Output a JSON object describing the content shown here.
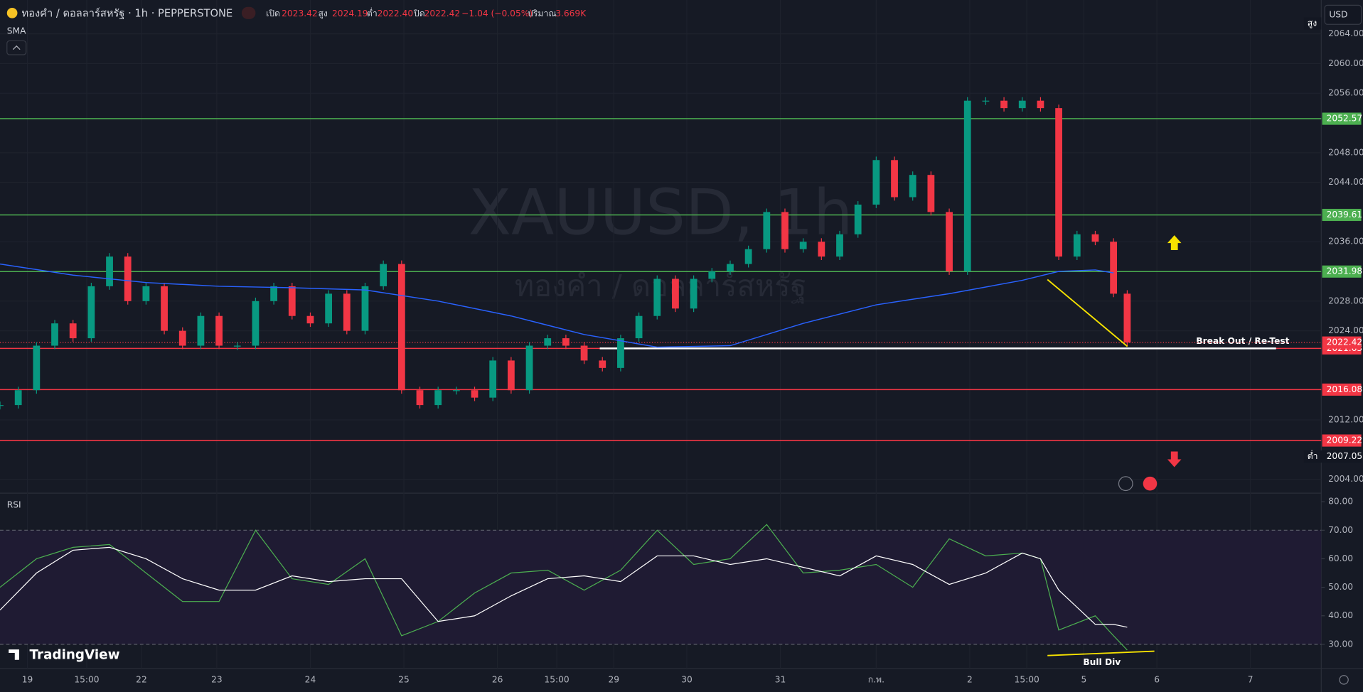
{
  "header": {
    "symbol": "ทองคำ / ดอลลาร์สหรัฐ · 1h · PEPPERSTONE",
    "ohlc": [
      {
        "label": "เปิด",
        "value": "2023.42"
      },
      {
        "label": "สูง",
        "value": "2024.19"
      },
      {
        "label": "ต่ำ",
        "value": "2022.40"
      },
      {
        "label": "ปิด",
        "value": "2022.42"
      }
    ],
    "change": "−1.04 (−0.05%)",
    "volume_label": "ปริมาณ",
    "volume": "3.669K",
    "currency": "USD",
    "brand": "TradingView"
  },
  "chart_data": [
    {
      "type": "candlestick",
      "indicator": "SMA",
      "watermark": "XAUUSD, 1h",
      "watermark_sub": "ทองคำ / ดอลลาร์สหรัฐ",
      "x": [
        0,
        4,
        8,
        12,
        16,
        20,
        24,
        28,
        32,
        36,
        40,
        44,
        48,
        52,
        56,
        60,
        64,
        68,
        72,
        76,
        80,
        84,
        88,
        92,
        96,
        100,
        104,
        108,
        112,
        116,
        120,
        124,
        128,
        132,
        136,
        140,
        144,
        148,
        152,
        156,
        160,
        164,
        168,
        172,
        176,
        180,
        184,
        188,
        192,
        196,
        200,
        204,
        208,
        212,
        216,
        220,
        224,
        228,
        232,
        236,
        240,
        244,
        247
      ],
      "values": [
        2014,
        2016,
        2022,
        2025,
        2023,
        2030,
        2034,
        2028,
        2030,
        2024,
        2022,
        2026,
        2022,
        2022,
        2028,
        2030,
        2026,
        2025,
        2029,
        2024,
        2030,
        2033,
        2016,
        2014,
        2016,
        2016,
        2015,
        2020,
        2016,
        2022,
        2023,
        2022,
        2020,
        2019,
        2023,
        2026,
        2031,
        2027,
        2031,
        2032,
        2033,
        2035,
        2040,
        2035,
        2036,
        2034,
        2037,
        2041,
        2047,
        2042,
        2045,
        2040,
        2032,
        2055,
        2055,
        2054,
        2055,
        2054,
        2034,
        2037,
        2036,
        2029,
        2022.42
      ],
      "up_color": "#089981",
      "down_color": "#f23645",
      "sma": {
        "x": [
          0,
          16,
          32,
          48,
          64,
          80,
          96,
          112,
          128,
          144,
          160,
          176,
          192,
          208,
          224,
          232,
          240,
          244
        ],
        "values": [
          2033,
          2031.5,
          2030.5,
          2030,
          2029.8,
          2029.5,
          2028,
          2026,
          2023.5,
          2021.8,
          2022,
          2025,
          2027.5,
          2029,
          2030.8,
          2032,
          2032.2,
          2031.8
        ],
        "color": "#2962ff"
      },
      "xlim": [
        0,
        300
      ],
      "xticks": [
        {
          "value": 6,
          "label": "19"
        },
        {
          "value": 19,
          "label": "15:00"
        },
        {
          "value": 31,
          "label": "22"
        },
        {
          "value": 47.5,
          "label": "23"
        },
        {
          "value": 68,
          "label": "24"
        },
        {
          "value": 88.5,
          "label": "25"
        },
        {
          "value": 109,
          "label": "26"
        },
        {
          "value": 122,
          "label": "15:00"
        },
        {
          "value": 134.5,
          "label": "29"
        },
        {
          "value": 150.5,
          "label": "30"
        },
        {
          "value": 171,
          "label": "31"
        },
        {
          "value": 192,
          "label": "ก.พ."
        },
        {
          "value": 212.5,
          "label": "2"
        },
        {
          "value": 225,
          "label": "15:00"
        },
        {
          "value": 237.5,
          "label": "5"
        },
        {
          "value": 253.5,
          "label": "6"
        },
        {
          "value": 274,
          "label": "7"
        }
      ],
      "ylim": [
        2002.13,
        2068.56
      ],
      "yticks": [
        {
          "value": 2064,
          "label": "2064.00"
        },
        {
          "value": 2060,
          "label": "2060.00"
        },
        {
          "value": 2056,
          "label": "2056.00"
        },
        {
          "value": 2048,
          "label": "2048.00"
        },
        {
          "value": 2044,
          "label": "2044.00"
        },
        {
          "value": 2036,
          "label": "2036.00"
        },
        {
          "value": 2028,
          "label": "2028.00"
        },
        {
          "value": 2024,
          "label": "2024.00"
        },
        {
          "value": 2012,
          "label": "2012.00"
        },
        {
          "value": 2004,
          "label": "2004.00"
        }
      ],
      "green_levels": [
        2052.57,
        2039.61,
        2031.98
      ],
      "red_levels": [
        2021.63,
        2016.08,
        2009.22
      ],
      "current_price": 2022.42,
      "high_label": "สูง",
      "low_label": "ต่ำ",
      "low": 2007.05,
      "annotation": "Break Out / Re-Test"
    },
    {
      "type": "line",
      "title": "RSI",
      "x": [
        0,
        8,
        16,
        24,
        32,
        40,
        48,
        56,
        64,
        72,
        80,
        88,
        96,
        104,
        112,
        120,
        128,
        136,
        144,
        152,
        160,
        168,
        176,
        184,
        192,
        200,
        208,
        216,
        224,
        228,
        232,
        240,
        244,
        247
      ],
      "series": [
        {
          "color": "#4caf50",
          "values": [
            50,
            60,
            64,
            65,
            55,
            45,
            45,
            70,
            53,
            51,
            60,
            33,
            38,
            48,
            55,
            56,
            49,
            56,
            70,
            58,
            60,
            72,
            55,
            56,
            58,
            50,
            67,
            61,
            62,
            60,
            35,
            40,
            33,
            28
          ]
        },
        {
          "color": "#ffffff",
          "values": [
            42,
            55,
            63,
            64,
            60,
            53,
            49,
            49,
            54,
            52,
            53,
            53,
            38,
            40,
            47,
            53,
            54,
            52,
            61,
            61,
            58,
            60,
            57,
            54,
            61,
            58,
            51,
            55,
            62,
            60,
            49,
            37,
            37,
            36
          ]
        }
      ],
      "ylim": [
        21.5,
        83
      ],
      "yticks": [
        {
          "value": 80,
          "label": "80.00"
        },
        {
          "value": 70,
          "label": "70.00"
        },
        {
          "value": 60,
          "label": "60.00"
        },
        {
          "value": 50,
          "label": "50.00"
        },
        {
          "value": 40,
          "label": "40.00"
        },
        {
          "value": 30,
          "label": "30.00"
        }
      ],
      "band": [
        30,
        70
      ],
      "annotation": "Bull Div"
    }
  ]
}
